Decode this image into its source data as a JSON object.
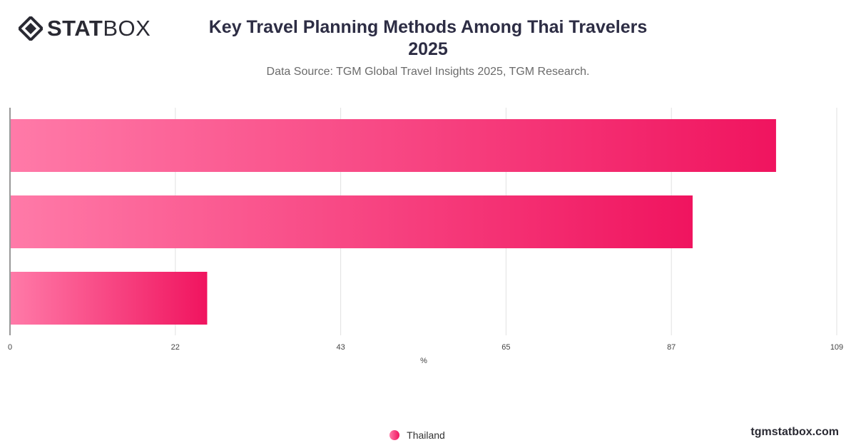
{
  "header": {
    "logo_bold": "STAT",
    "logo_light": "BOX",
    "title_line1": "Key Travel Planning Methods Among Thai Travelers",
    "title_line2": "2025",
    "subtitle": "Data Source: TGM Global Travel Insights 2025, TGM Research."
  },
  "footer": {
    "site": "tgmstatbox.com"
  },
  "colors": {
    "bar_start": "#ff7aa8",
    "bar_end": "#f0145f",
    "grid": "#e2e2e2",
    "axis": "#333333"
  },
  "chart_data": {
    "type": "bar",
    "orientation": "horizontal",
    "categories": [
      "",
      "",
      ""
    ],
    "series": [
      {
        "name": "Thailand",
        "values": [
          101,
          90,
          26
        ]
      }
    ],
    "xlabel": "%",
    "ylabel": "",
    "xlim": [
      0,
      109
    ],
    "xticks": [
      "0",
      "22",
      "43",
      "65",
      "87",
      "109"
    ],
    "grid": true,
    "legend": "bottom-center"
  }
}
